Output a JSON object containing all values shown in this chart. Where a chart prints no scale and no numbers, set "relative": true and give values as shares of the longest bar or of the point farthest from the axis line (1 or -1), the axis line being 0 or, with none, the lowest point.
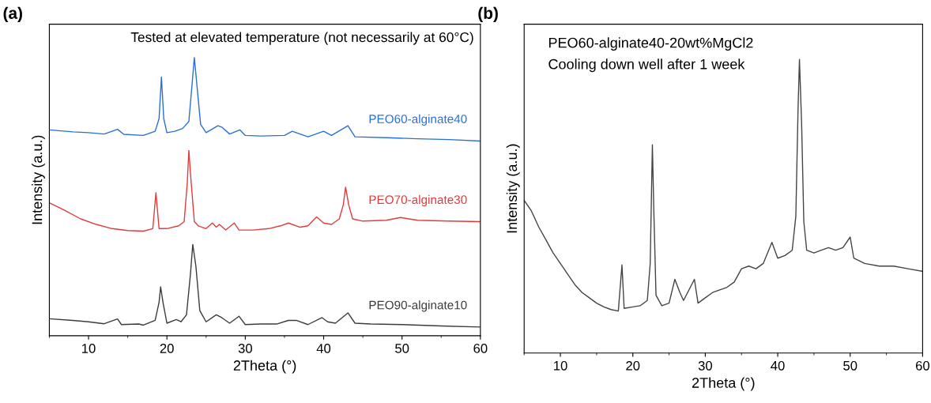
{
  "chart_data": [
    {
      "type": "line",
      "title": "(a)",
      "xlabel": "2Theta (°)",
      "ylabel": "Intensity (a.u.)",
      "relative": true,
      "xlim": [
        5,
        60
      ],
      "xticks": [
        10,
        20,
        30,
        40,
        50,
        60
      ],
      "tick_labels": "x",
      "legend": false,
      "grid": false,
      "annotations": [
        "Tested at elevated temperature (not necessarily at 60°C)"
      ],
      "series": [
        {
          "name": "PEO60-alginate40",
          "color": "#2a6fd6",
          "x": [
            5,
            8,
            10,
            12,
            13.7,
            14.5,
            17,
            18.5,
            19.0,
            19.3,
            19.6,
            20,
            21,
            22,
            22.8,
            23.2,
            23.5,
            23.9,
            24.3,
            25,
            26.5,
            27.0,
            28,
            29.3,
            30,
            32,
            35,
            36,
            38,
            40,
            41,
            43.1,
            44,
            48,
            52,
            56,
            60
          ],
          "values": [
            0.74,
            0.733,
            0.73,
            0.725,
            0.742,
            0.724,
            0.72,
            0.735,
            0.78,
            0.93,
            0.78,
            0.73,
            0.735,
            0.745,
            0.77,
            0.9,
            1.0,
            0.88,
            0.76,
            0.73,
            0.755,
            0.75,
            0.725,
            0.74,
            0.72,
            0.718,
            0.72,
            0.735,
            0.715,
            0.735,
            0.72,
            0.755,
            0.715,
            0.712,
            0.708,
            0.705,
            0.7
          ]
        },
        {
          "name": "PEO70-alginate30",
          "color": "#e03c3c",
          "x": [
            5,
            7,
            9,
            11,
            13,
            15,
            17,
            18.2,
            18.6,
            19.0,
            20,
            21.5,
            22.2,
            22.6,
            22.8,
            23.1,
            23.5,
            24,
            25,
            25.8,
            26.3,
            26.7,
            27.5,
            28.6,
            29.2,
            31,
            33,
            34.5,
            35.5,
            37,
            38,
            39.1,
            40,
            41,
            42,
            42.5,
            42.8,
            43.2,
            43.7,
            45,
            48,
            49.8,
            52,
            56,
            60
          ],
          "values": [
            0.478,
            0.45,
            0.42,
            0.4,
            0.385,
            0.378,
            0.376,
            0.385,
            0.514,
            0.385,
            0.385,
            0.395,
            0.41,
            0.55,
            0.666,
            0.55,
            0.41,
            0.395,
            0.385,
            0.405,
            0.39,
            0.4,
            0.38,
            0.405,
            0.38,
            0.38,
            0.385,
            0.395,
            0.405,
            0.39,
            0.395,
            0.427,
            0.405,
            0.4,
            0.42,
            0.47,
            0.534,
            0.47,
            0.42,
            0.412,
            0.415,
            0.425,
            0.415,
            0.412,
            0.41
          ]
        },
        {
          "name": "PEO90-alginate10",
          "color": "#3c3c3c",
          "x": [
            5,
            8,
            10,
            12,
            13.7,
            14.2,
            16.4,
            17,
            18.5,
            19.0,
            19.2,
            19.5,
            20,
            21.2,
            21.8,
            22.5,
            23.0,
            23.3,
            23.7,
            24.2,
            25,
            26.3,
            27,
            27.5,
            28,
            29.2,
            30,
            32,
            34,
            35.5,
            36.5,
            38,
            39.8,
            40.5,
            41.5,
            43.1,
            44,
            46,
            50,
            55,
            60
          ],
          "values": [
            0.061,
            0.055,
            0.05,
            0.043,
            0.06,
            0.04,
            0.042,
            0.038,
            0.055,
            0.12,
            0.176,
            0.12,
            0.045,
            0.058,
            0.05,
            0.075,
            0.22,
            0.328,
            0.25,
            0.09,
            0.05,
            0.075,
            0.065,
            0.055,
            0.045,
            0.07,
            0.04,
            0.042,
            0.042,
            0.055,
            0.055,
            0.04,
            0.065,
            0.05,
            0.045,
            0.082,
            0.045,
            0.042,
            0.04,
            0.035,
            0.031
          ]
        }
      ]
    },
    {
      "type": "line",
      "title": "(b)",
      "xlabel": "2Theta (°)",
      "ylabel": "Intensity (a.u.)",
      "relative": true,
      "xlim": [
        5,
        60
      ],
      "xticks": [
        10,
        20,
        30,
        40,
        50,
        60
      ],
      "tick_labels": "x",
      "legend": false,
      "grid": false,
      "annotations": [
        "PEO60-alginate40-20wt%MgCl2",
        "Cooling down well after 1 week"
      ],
      "series": [
        {
          "color": "#444444",
          "x": [
            5,
            6,
            7,
            8,
            9,
            10,
            11,
            12,
            13,
            14,
            15,
            16,
            17,
            18,
            18.5,
            18.8,
            20,
            21,
            22,
            22.4,
            22.7,
            22.9,
            23.2,
            24,
            25,
            25.8,
            26.5,
            27,
            28.5,
            29,
            30,
            31,
            32,
            33,
            34,
            35,
            36,
            37,
            38,
            39.2,
            40,
            41,
            42,
            42.5,
            42.8,
            43.0,
            43.3,
            43.6,
            44,
            45,
            46,
            47,
            48,
            49,
            50,
            50.5,
            52,
            54,
            56,
            58,
            60
          ],
          "values": [
            0.52,
            0.484,
            0.43,
            0.386,
            0.341,
            0.305,
            0.269,
            0.233,
            0.206,
            0.188,
            0.17,
            0.157,
            0.148,
            0.143,
            0.3,
            0.152,
            0.157,
            0.161,
            0.179,
            0.305,
            0.709,
            0.484,
            0.197,
            0.161,
            0.17,
            0.251,
            0.206,
            0.179,
            0.251,
            0.17,
            0.188,
            0.206,
            0.215,
            0.224,
            0.242,
            0.287,
            0.296,
            0.287,
            0.305,
            0.377,
            0.323,
            0.332,
            0.35,
            0.466,
            0.825,
            1.0,
            0.78,
            0.448,
            0.35,
            0.341,
            0.35,
            0.359,
            0.35,
            0.359,
            0.395,
            0.323,
            0.305,
            0.296,
            0.296,
            0.287,
            0.278
          ]
        }
      ]
    }
  ]
}
